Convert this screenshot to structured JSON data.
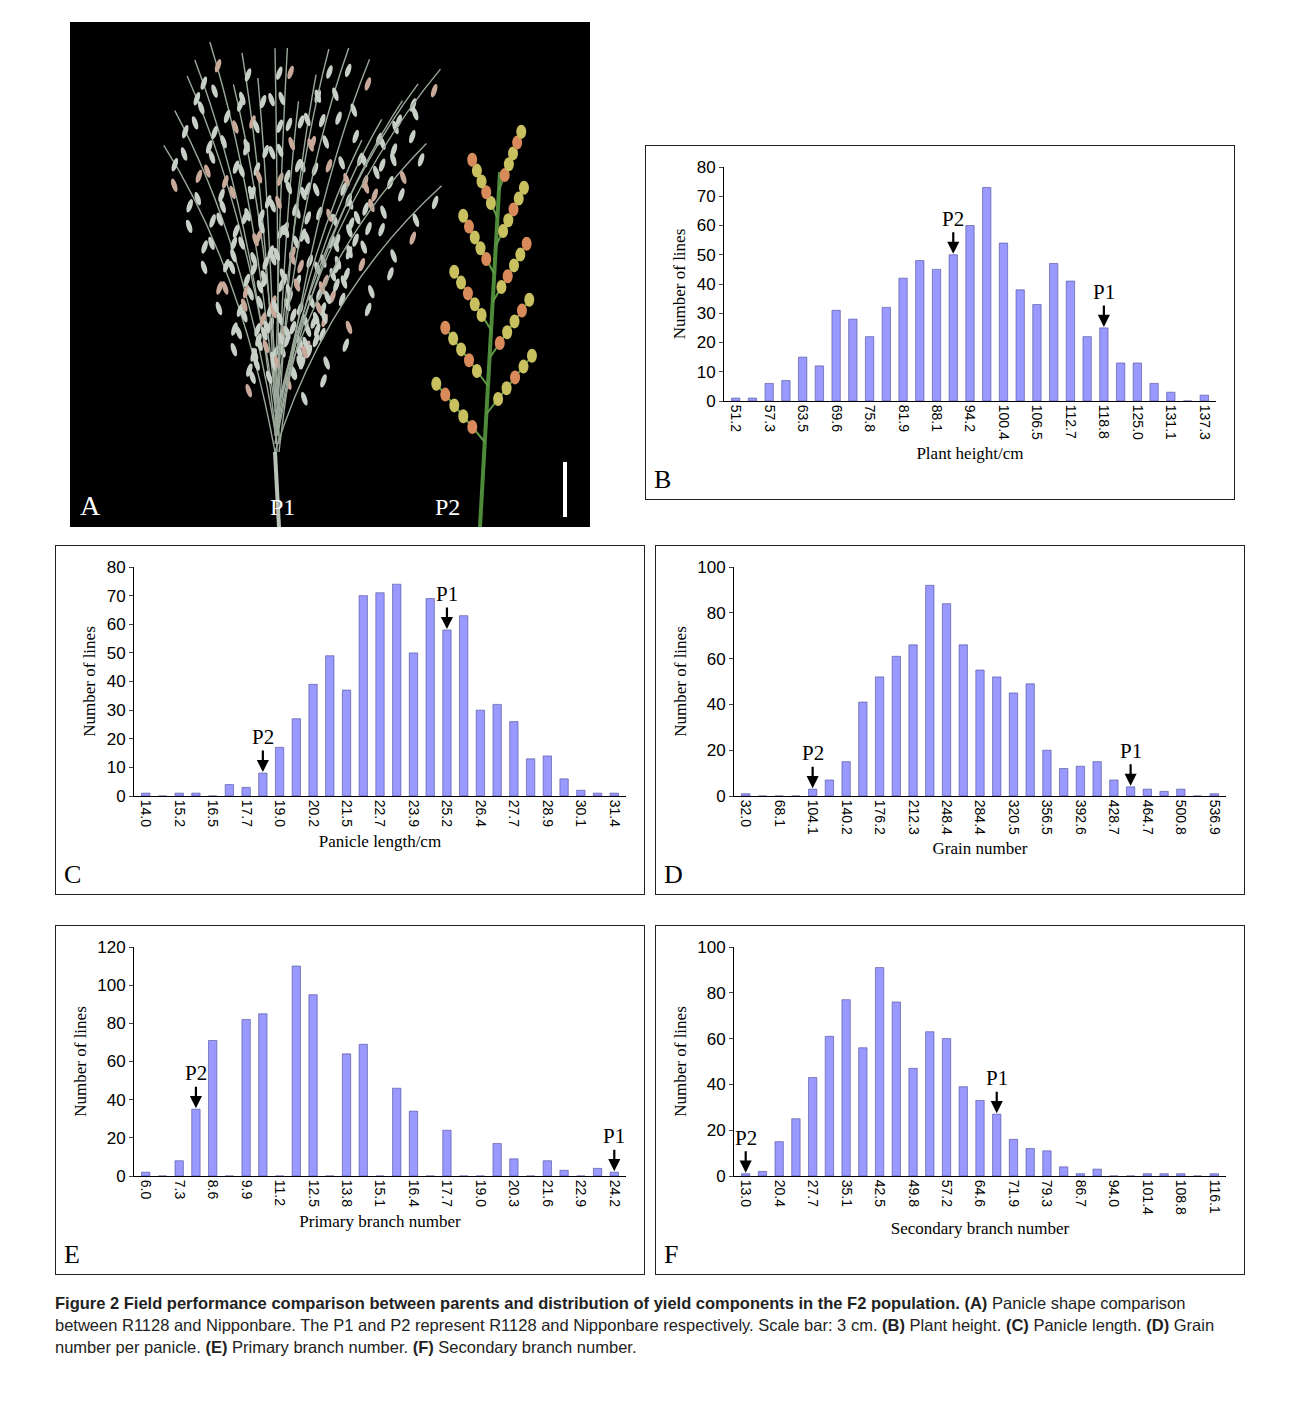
{
  "chart_data": [
    {
      "panel": "B",
      "type": "bar",
      "color": "#9999ff",
      "grid": false,
      "xlabel": "Plant height/cm",
      "ylabel": "Number of lines",
      "categories": [
        "51.2",
        null,
        "57.3",
        null,
        "63.5",
        null,
        "69.6",
        null,
        "75.8",
        null,
        "81.9",
        null,
        "88.1",
        null,
        "94.2",
        null,
        "100.4",
        null,
        "106.5",
        null,
        "112.7",
        null,
        "118.8",
        null,
        "125.0",
        null,
        "131.1",
        null,
        "137.3"
      ],
      "values": [
        1,
        1,
        6,
        7,
        15,
        12,
        31,
        28,
        22,
        32,
        42,
        48,
        45,
        50,
        60,
        73,
        54,
        38,
        33,
        47,
        41,
        22,
        25,
        13,
        13,
        6,
        3,
        0,
        2
      ],
      "ylim": [
        0,
        80
      ],
      "yticks": [
        0,
        10,
        20,
        30,
        40,
        50,
        60,
        70,
        80
      ],
      "annotations": [
        {
          "text": "P2",
          "index": 13
        },
        {
          "text": "P1",
          "index": 22
        }
      ]
    },
    {
      "panel": "C",
      "type": "bar",
      "color": "#9999ff",
      "grid": false,
      "xlabel": "Panicle length/cm",
      "ylabel": "Number of lines",
      "categories": [
        "14.0",
        null,
        "15.2",
        null,
        "16.5",
        null,
        "17.7",
        null,
        "19.0",
        null,
        "20.2",
        null,
        "21.5",
        null,
        "22.7",
        null,
        "23.9",
        null,
        "25.2",
        null,
        "26.4",
        null,
        "27.7",
        null,
        "28.9",
        null,
        "30.1",
        null,
        "31.4"
      ],
      "values": [
        1,
        0,
        1,
        1,
        0,
        4,
        3,
        8,
        17,
        27,
        39,
        49,
        37,
        70,
        71,
        74,
        50,
        69,
        58,
        63,
        30,
        32,
        26,
        13,
        14,
        6,
        2,
        1,
        1
      ],
      "ylim": [
        0,
        80
      ],
      "yticks": [
        0,
        10,
        20,
        30,
        40,
        50,
        60,
        70,
        80
      ],
      "annotations": [
        {
          "text": "P2",
          "index": 7
        },
        {
          "text": "P1",
          "index": 18
        }
      ]
    },
    {
      "panel": "D",
      "type": "bar",
      "color": "#9999ff",
      "grid": false,
      "xlabel": "Grain number",
      "ylabel": "Number of lines",
      "categories": [
        "32.0",
        null,
        "68.1",
        null,
        "104.1",
        null,
        "140.2",
        null,
        "176.2",
        null,
        "212.3",
        null,
        "248.4",
        null,
        "284.4",
        null,
        "320.5",
        null,
        "356.5",
        null,
        "392.6",
        null,
        "428.7",
        null,
        "464.7",
        null,
        "500.8",
        null,
        "536.9"
      ],
      "values": [
        1,
        0,
        0,
        0,
        3,
        7,
        15,
        41,
        52,
        61,
        66,
        92,
        84,
        66,
        55,
        52,
        45,
        49,
        20,
        12,
        13,
        15,
        7,
        4,
        3,
        2,
        3,
        0,
        1
      ],
      "ylim": [
        0,
        100
      ],
      "yticks": [
        0,
        20,
        40,
        60,
        80,
        100
      ],
      "annotations": [
        {
          "text": "P2",
          "index": 4
        },
        {
          "text": "P1",
          "index": 23
        }
      ]
    },
    {
      "panel": "E",
      "type": "bar",
      "color": "#9999ff",
      "grid": false,
      "xlabel": "Primary branch number",
      "ylabel": "Number of lines",
      "categories": [
        "6.0",
        null,
        "7.3",
        null,
        "8.6",
        null,
        "9.9",
        null,
        "11.2",
        null,
        "12.5",
        null,
        "13.8",
        null,
        "15.1",
        null,
        "16.4",
        null,
        "17.7",
        null,
        "19.0",
        null,
        "20.3",
        null,
        "21.6",
        null,
        "22.9",
        null,
        "24.2"
      ],
      "values": [
        2,
        0,
        8,
        35,
        71,
        0,
        82,
        85,
        0,
        110,
        95,
        0,
        64,
        69,
        0,
        46,
        34,
        0,
        24,
        0,
        0,
        17,
        9,
        0,
        8,
        3,
        0,
        4,
        2
      ],
      "ylim": [
        0,
        120
      ],
      "yticks": [
        0,
        20,
        40,
        60,
        80,
        100,
        120
      ],
      "annotations": [
        {
          "text": "P2",
          "index": 3
        },
        {
          "text": "P1",
          "index": 28
        }
      ]
    },
    {
      "panel": "F",
      "type": "bar",
      "color": "#9999ff",
      "grid": false,
      "xlabel": "Secondary branch number",
      "ylabel": "Number of lines",
      "categories": [
        "13.0",
        null,
        "20.4",
        null,
        "27.7",
        null,
        "35.1",
        null,
        "42.5",
        null,
        "49.8",
        null,
        "57.2",
        null,
        "64.6",
        null,
        "71.9",
        null,
        "79.3",
        null,
        "86.7",
        null,
        "94.0",
        null,
        "101.4",
        null,
        "108.8",
        null,
        "116.1"
      ],
      "values": [
        1,
        2,
        15,
        25,
        43,
        61,
        77,
        56,
        91,
        76,
        47,
        63,
        60,
        39,
        33,
        27,
        16,
        12,
        11,
        4,
        1,
        3,
        0,
        0,
        1,
        1,
        1,
        0,
        1
      ],
      "ylim": [
        0,
        100
      ],
      "yticks": [
        0,
        20,
        40,
        60,
        80,
        100
      ],
      "annotations": [
        {
          "text": "P2",
          "index": 0
        },
        {
          "text": "P1",
          "index": 15
        }
      ]
    }
  ],
  "photo": {
    "panel": "A",
    "labels": [
      "P1",
      "P2"
    ]
  },
  "caption": {
    "figure": "Figure 2",
    "title": "Field performance comparison between parents and distribution of yield components in the F2 population.",
    "parts": [
      {
        "label": "(A)",
        "text": "Panicle shape comparison between R1128 and Nipponbare. The P1 and P2 represent R1128 and Nipponbare respectively. Scale bar: 3 cm."
      },
      {
        "label": "(B)",
        "text": "Plant height."
      },
      {
        "label": "(C)",
        "text": "Panicle length."
      },
      {
        "label": "(D)",
        "text": "Grain number per panicle."
      },
      {
        "label": "(E)",
        "text": "Primary branch number."
      },
      {
        "label": "(F)",
        "text": "Secondary branch number."
      }
    ]
  }
}
